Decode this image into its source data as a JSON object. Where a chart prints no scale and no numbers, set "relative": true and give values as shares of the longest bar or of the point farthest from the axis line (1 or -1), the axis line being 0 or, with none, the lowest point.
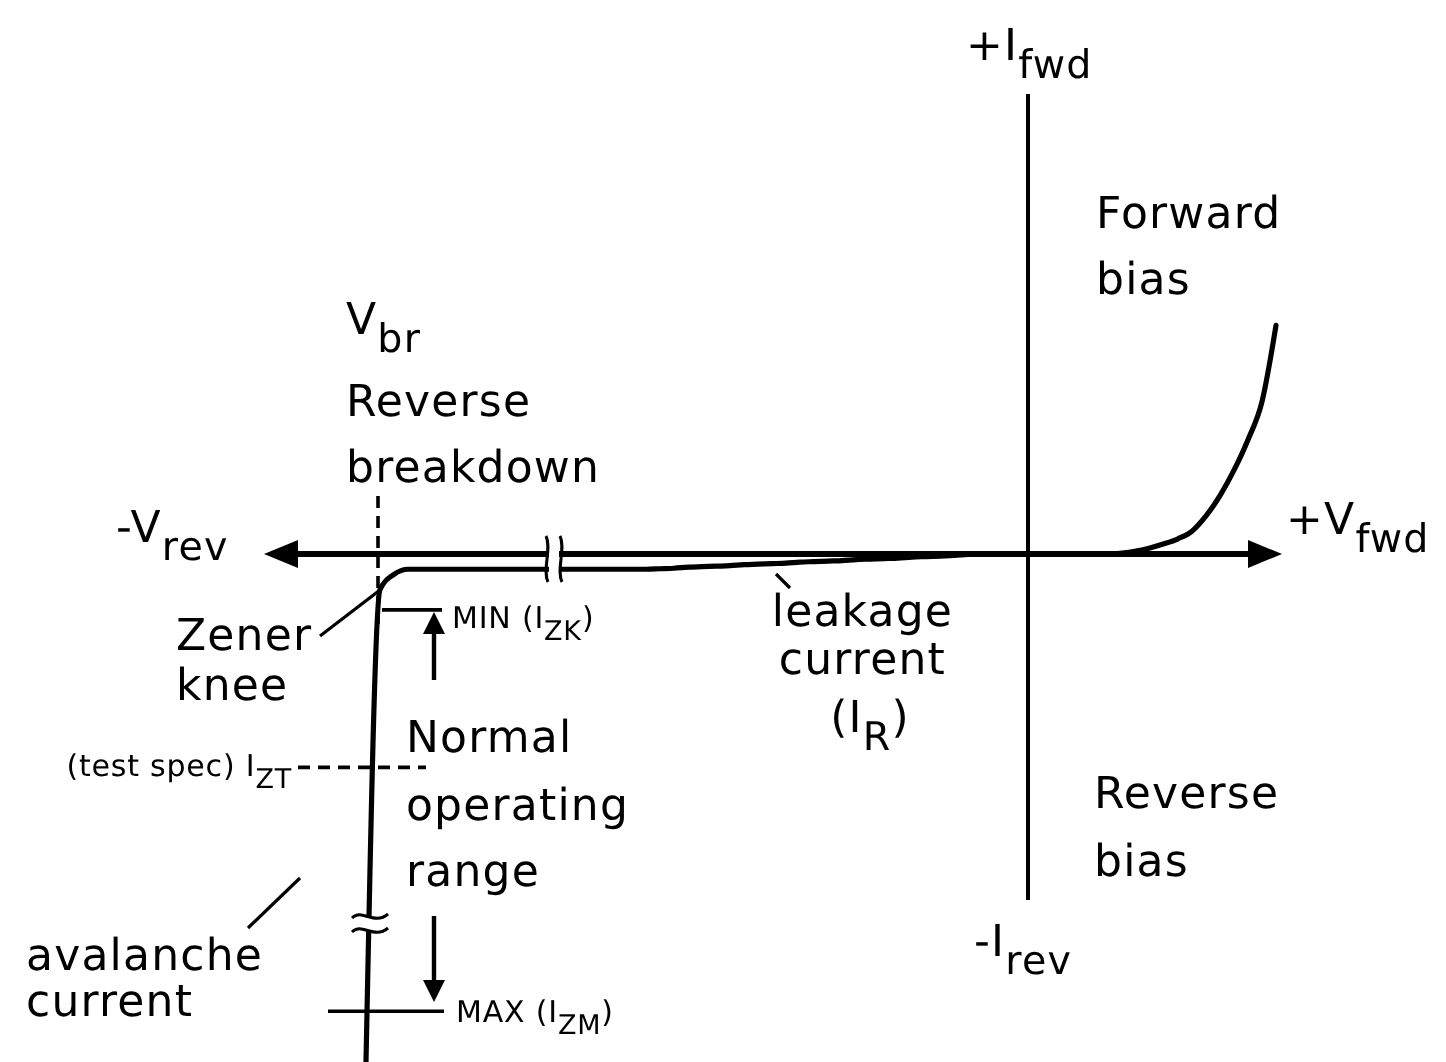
{
  "chart_data": {
    "type": "line",
    "relative": true,
    "line_style": "solid",
    "color": "#000000",
    "categories": [
      null,
      null,
      null,
      null,
      null,
      null,
      null,
      null,
      null,
      null,
      null,
      null,
      null,
      null,
      null,
      null,
      null,
      null,
      null,
      null,
      null,
      null,
      null,
      null,
      null,
      null,
      null,
      null,
      null,
      null,
      null,
      null,
      null,
      null,
      null,
      null,
      null,
      null,
      null,
      null,
      null,
      null,
      null,
      null,
      null,
      null,
      null,
      null,
      null,
      null,
      null,
      null,
      null,
      null,
      null,
      null,
      null,
      null,
      null,
      null,
      null,
      null,
      null,
      null,
      null,
      null
    ],
    "values": [
      -1,
      -0.07,
      -0.04,
      -0.03,
      -0.03,
      -0.03,
      -0.03,
      -0.03,
      -0.03,
      -0.03,
      -0.03,
      -0.03,
      -0.03,
      -0.03,
      -0.03,
      -0.03,
      -0.03,
      -0.03,
      -0.03,
      -0.03,
      -0.03,
      -0.029,
      -0.028,
      -0.026,
      -0.025,
      -0.024,
      -0.023,
      -0.021,
      -0.02,
      -0.019,
      -0.018,
      -0.016,
      -0.015,
      -0.014,
      -0.013,
      -0.011,
      -0.01,
      -0.009,
      -0.008,
      -0.006,
      -0.005,
      -0.004,
      -0.003,
      -0.001,
      0,
      0,
      0,
      0,
      0,
      0,
      0,
      0,
      0,
      0,
      0.002,
      0.006,
      0.012,
      0.02,
      0.03,
      0.045,
      0.075,
      0.115,
      0.165,
      0.225,
      0.3,
      0.45
    ],
    "xlabel": "+V$_{fwd}$",
    "annotations": [
      "-V$_{rev}$",
      "-I$_{rev}$",
      "Forward bias",
      "Reverse bias",
      "leakage current (I$_{R}$)",
      "Zener knee",
      "Normal operating range",
      "avalanche current",
      "+I$_{fwd}$"
    ],
    "ref_lines": [
      {
        "axis": "x",
        "label": "V$_{br}$ Reverse breakdown",
        "line_style": "dashed"
      },
      {
        "axis": "y",
        "value": -0.42,
        "label": "(test spec) I$_{ZT}$",
        "line_style": "dashed"
      },
      {
        "axis": "y",
        "value": -0.11,
        "label": "MIN (I$_{ZK}$)",
        "line_style": "solid"
      },
      {
        "axis": "y",
        "value": -0.9,
        "label": "MAX (I$_{ZM}$)",
        "line_style": "solid"
      }
    ]
  }
}
